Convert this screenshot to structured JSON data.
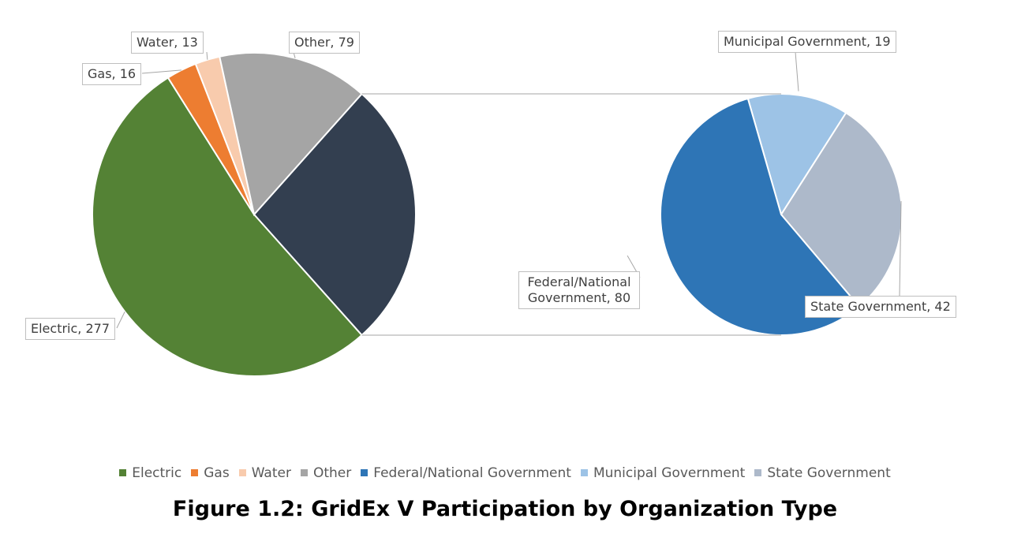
{
  "chart_data": {
    "type": "pie_of_pie",
    "title": "Figure 1.2: GridEx V Participation by Organization Type",
    "categories": [
      "Electric",
      "Gas",
      "Water",
      "Other"
    ],
    "values": [
      277,
      16,
      13,
      79
    ],
    "value_labels": [
      "Electric, 277",
      "Gas, 16",
      "Water, 13",
      "Other, 79"
    ],
    "colors": [
      "#548235",
      "#ed7d31",
      "#f8cbad",
      "#a5a5a5"
    ],
    "secondary": {
      "color": "#333f50",
      "categories": [
        "Federal/National Government",
        "Municipal Government",
        "State Government"
      ],
      "values": [
        80,
        19,
        42
      ],
      "value_labels": [
        "Federal/National Government, 80",
        "Municipal Government, 19",
        "State Government, 42"
      ],
      "colors": [
        "#2e75b6",
        "#9dc3e6",
        "#adb9ca"
      ]
    },
    "legend": "bottom"
  }
}
